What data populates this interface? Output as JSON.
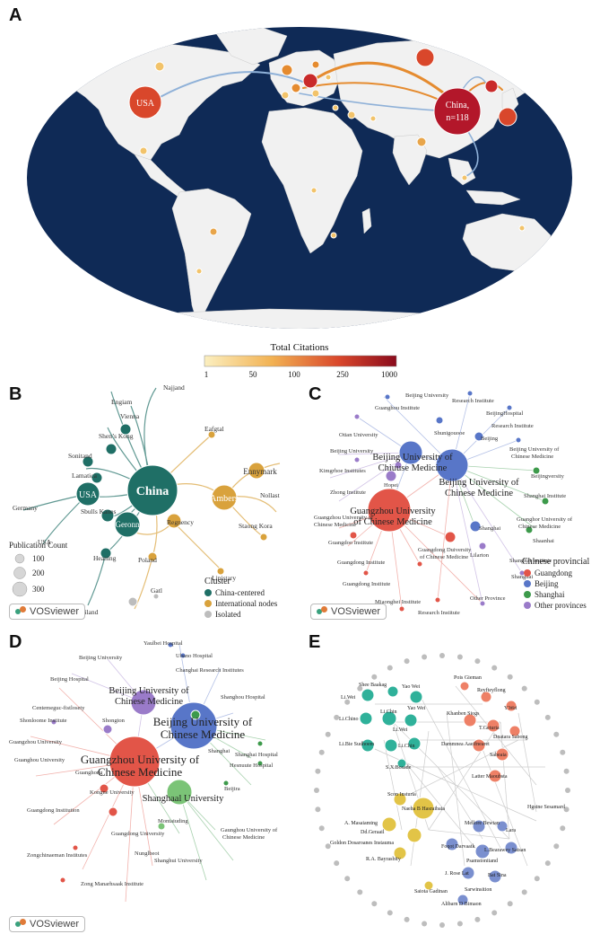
{
  "panels": {
    "a": "A",
    "b": "B",
    "c": "C",
    "d": "D",
    "e": "E"
  },
  "colors": {
    "ocean": "#0f2a56",
    "land": "#f4f4f4",
    "china": "#b3172a",
    "usa": "#d9472b",
    "orange": "#e58b2f",
    "teal": "#1f6f66",
    "gold": "#d9a23c",
    "gray": "#bdbdbd",
    "blue": "#5876c8",
    "red": "#e25548",
    "green": "#3d9a4b",
    "purple": "#9a7bc9",
    "yellow": "#e2c447"
  },
  "map": {
    "usa_label": "USA",
    "china_label_1": "China,",
    "china_label_2": "n=118",
    "legend_title": "Total Citations",
    "legend_ticks": [
      "1",
      "50",
      "100",
      "250",
      "1000"
    ]
  },
  "panel_b": {
    "center": "China",
    "hubs": [
      "USA",
      "Geronn",
      "Ambers",
      "Ennymark"
    ],
    "labels": [
      "Najjand",
      "Engiam",
      "Vienna",
      "Shen’s Kong",
      "Sonitand",
      "Lamatica",
      "Sbulls Kanes",
      "Heaning",
      "Germany",
      "USA",
      "Eafgtal",
      "Nollast",
      "Staong Kora",
      "Regnency",
      "Poland",
      "Linistary",
      "Issiland",
      "Gatl"
    ],
    "size_legend_title": "Publication Count",
    "size_legend": [
      "100",
      "200",
      "300"
    ],
    "cluster_title": "Cluster",
    "clusters": [
      "China-centered",
      "International nodes",
      "Isolated"
    ],
    "vos": "VOSviewer"
  },
  "panel_c": {
    "hub1_1": "Beijing University of",
    "hub1_2": "Chiuuse Medicine",
    "hub2_1": "Beijing University of",
    "hub2_2": "Chinese Medicine",
    "hub3_1": "Guangzhou University",
    "hub3_2": "of Chinese Medicine",
    "labels": [
      "Beijing University",
      "Research Institute",
      "Guanghou Institute",
      "BeijingHospital",
      "Research Institute",
      "Otian University",
      "Shunigouooe",
      "Beijing",
      "Beijing University",
      "Beijing University of",
      "Chinese Medicine",
      "Kimgrhoe Institutes",
      "Hopei",
      "Zhong Institute",
      "Beijingversity",
      "Shanghai Institute",
      "Guangzhou University of",
      "Chinese Medicine",
      "Shanghai",
      "Guanghor University of",
      "Chinese Medicine",
      "Guangdoo Institute",
      "Shaanhai",
      "Guangdong Institute",
      "Guangdong Duiversity",
      "of Chinese Medicine",
      "Lilarton",
      "Shanghai Institute",
      "Guangdong Institute",
      "Shanghai",
      "Miaonghei Institute",
      "Other Province",
      "Research Institute"
    ],
    "legend_title": "Chinese provincial",
    "legend": [
      "Guangdong",
      "Beijing",
      "Shanghai",
      "Other provinces"
    ],
    "vos": "VOSviewer"
  },
  "panel_d": {
    "hub1_1": "Beijing University of",
    "hub1_2": "Chinese Medicine",
    "hub2_1": "Beijing University of",
    "hub2_2": "Chinese Medicine",
    "hub3_1": "Guangzhou University of",
    "hub3_2": "Chinese Medicine",
    "hub4": "Shanghaal University",
    "labels": [
      "Yaulbei Hospital",
      "Ubano Hospital",
      "Beijing University",
      "Changhai Research Institutes",
      "Beijing Hospital",
      "Shanghou Hospital",
      "Centemeguc-fistlosety",
      "Shongton",
      "Shonloome Institute",
      "Shanghai",
      "Shanghai Hospital",
      "Guangzhou University",
      "Hesnuute Hospital",
      "Guanghou University",
      "Guanghong",
      "Beijira",
      "Kongne University",
      "Montaiuding",
      "Guangdong Institution",
      "Guangdong University",
      "Gaunghou University of",
      "Chinese Medicine",
      "Zongchinaeman Institutes",
      "Nunglbeot",
      "Shanghui University",
      "Zong Manarhsaak Institute"
    ],
    "vos": "VOSviewer"
  },
  "panel_e": {
    "labels": [
      "Shee Baakag",
      "Li.Wei",
      "Yao Wei",
      "Li.Chino",
      "Li.Chin",
      "Li.Bie Sudhoem",
      "Li.Wei",
      "Yao Wei",
      "Li.Chin",
      "S.X.Bosade",
      "Pois Gieman",
      "Reyfteyflong",
      "Y.Wei",
      "Khanben Siogs",
      "T.Geturia",
      "Dnatara Sabong",
      "Dammnea Aaeifnearet",
      "Sabeaia",
      "Latter Maoubsta",
      "Scon Insturia",
      "Naeha B Hasraibaia",
      "A. Masaiamtng",
      "Dd.Geraail",
      "Goldon Dosaroanes Instauma",
      "Hgstne Sesamard",
      "R.A. Bayrasbity",
      "Mellore Bewtan",
      "Lara",
      "Foqot Darvaatk",
      "L.Bearawey Satsan",
      "Psamstonitand",
      "J. Rose Lat",
      "Bat Sina",
      "Saiota Gadinan",
      "Sarwinsition",
      "Alibarn D Bimaon"
    ]
  }
}
